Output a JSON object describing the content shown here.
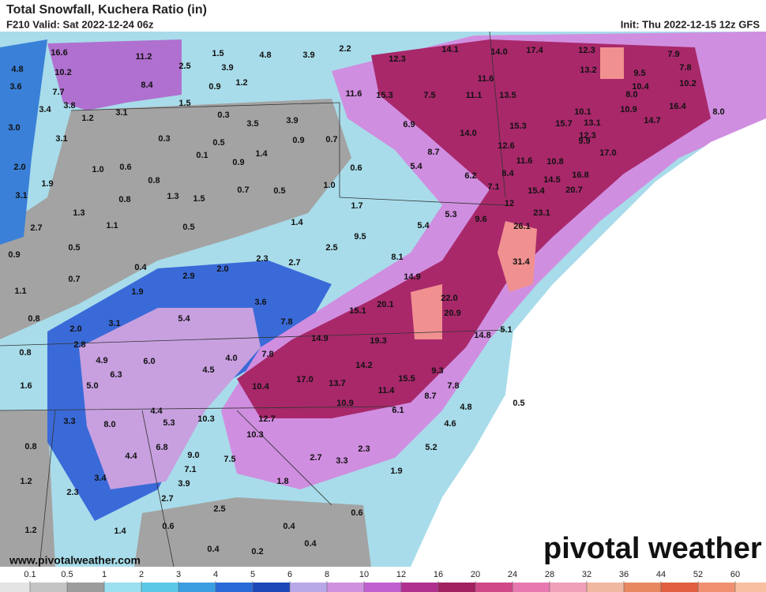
{
  "header": {
    "title": "Total Snowfall, Kuchera Ratio (in)",
    "valid": "F210 Valid: Sat 2022-12-24 06z",
    "init": "Init: Thu 2022-12-15 12z GFS"
  },
  "map": {
    "snowfall_labels": [
      "16.6",
      "11.2",
      "1.5",
      "4.8",
      "3.9",
      "2.2",
      "12.3",
      "14.1",
      "14.0",
      "17.4",
      "12.3",
      "7.9",
      "4.8",
      "10.2",
      "2.5",
      "3.9",
      "7.8",
      "9.5",
      "13.2",
      "3.6",
      "7.7",
      "8.4",
      "0.9",
      "1.2",
      "11.6",
      "10.4",
      "10.2",
      "3.4",
      "3.8",
      "1.5",
      "11.6",
      "15.3",
      "7.5",
      "11.1",
      "13.5",
      "8.0",
      "1.2",
      "3.1",
      "0.3",
      "3.5",
      "3.9",
      "10.1",
      "10.9",
      "16.4",
      "8.0",
      "3.0",
      "6.9",
      "15.3",
      "15.7",
      "13.1",
      "14.7",
      "3.1",
      "0.3",
      "0.5",
      "0.9",
      "0.7",
      "14.0",
      "12.6",
      "12.3",
      "0.1",
      "1.4",
      "8.7",
      "9.9",
      "17.0",
      "2.0",
      "1.0",
      "0.6",
      "0.9",
      "0.6",
      "5.4",
      "10.8",
      "0.8",
      "6.2",
      "8.4",
      "11.6",
      "14.5",
      "16.8",
      "1.9",
      "1.0",
      "7.1",
      "15.4",
      "20.7",
      "3.1",
      "0.8",
      "1.3",
      "1.5",
      "0.7",
      "0.5",
      "1.3",
      "1.7",
      "12",
      "23.1",
      "5.3",
      "9.6",
      "1.1",
      "2.7",
      "0.5",
      "1.4",
      "5.4",
      "26.1",
      "0.5",
      "9.5",
      "2.5",
      "8.1",
      "0.9",
      "0.4",
      "2.3",
      "2.7",
      "31.4",
      "0.7",
      "2.9",
      "2.0",
      "14.9",
      "1.1",
      "1.9",
      "3.6",
      "20.1",
      "22.0",
      "0.8",
      "5.4",
      "7.8",
      "15.1",
      "20.9",
      "3.1",
      "2.0",
      "14.9",
      "19.3",
      "14.8",
      "5.1",
      "0.8",
      "2.8",
      "7.8",
      "4.9",
      "6.0",
      "4.0",
      "14.2",
      "9.3",
      "6.3",
      "4.5",
      "17.0",
      "13.7",
      "15.5",
      "1.6",
      "5.0",
      "10.4",
      "11.4",
      "8.7",
      "7.8",
      "10.9",
      "6.1",
      "4.8",
      "0.5",
      "4.4",
      "10.3",
      "12.7",
      "3.3",
      "5.3",
      "8.0",
      "4.6",
      "10.3",
      "0.8",
      "6.8",
      "9.0",
      "5.2",
      "2.3",
      "4.4",
      "7.5",
      "2.7",
      "3.3",
      "7.1",
      "1.2",
      "3.4",
      "1.8",
      "1.9",
      "3.9",
      "2.3",
      "2.7",
      "2.5",
      "0.6",
      "1.2",
      "1.4",
      "0.6",
      "0.4",
      "0.4",
      "0.4",
      "0.2"
    ]
  },
  "legend": {
    "ticks": [
      0.1,
      0.5,
      1,
      2,
      3,
      4,
      5,
      6,
      8,
      10,
      12,
      16,
      20,
      24,
      28,
      32,
      36,
      44,
      52,
      60
    ],
    "colors": [
      "#e4e4e4",
      "#c4c4c4",
      "#9c9c9c",
      "#9ae0f0",
      "#5cc8e8",
      "#3a9ee0",
      "#2a6ad8",
      "#1c48b8",
      "#b8a8e8",
      "#d090e0",
      "#c060d0",
      "#b03090",
      "#a02060",
      "#d04888",
      "#e878b0",
      "#f0a0b8",
      "#f0b8a0",
      "#e88860",
      "#e06040",
      "#f09070",
      "#f8c0a0"
    ]
  },
  "footer": {
    "website": "www.pivotalweather.com",
    "brand": "pivotal weather"
  }
}
